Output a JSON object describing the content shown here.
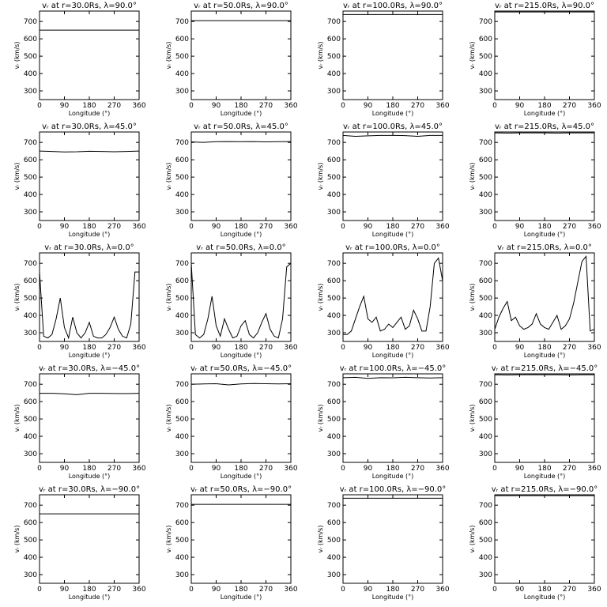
{
  "chart_data": [
    {
      "type": "line",
      "title": "vᵣ at r=30.0Rs, λ=90.0°",
      "xlabel": "Longitude (°)",
      "ylabel": "vᵣ (km/s)",
      "x": [
        0,
        360
      ],
      "values": [
        650,
        650
      ],
      "color": "#000000",
      "xlim": [
        0,
        360
      ],
      "ylim": [
        250,
        760
      ],
      "xticks": [
        0,
        90,
        180,
        270,
        360
      ],
      "yticks": [
        300,
        400,
        500,
        600,
        700
      ]
    },
    {
      "type": "line",
      "title": "vᵣ at r=50.0Rs, λ=90.0°",
      "xlabel": "Longitude (°)",
      "ylabel": "vᵣ (km/s)",
      "x": [
        0,
        360
      ],
      "values": [
        705,
        705
      ],
      "color": "#000000",
      "xlim": [
        0,
        360
      ],
      "ylim": [
        250,
        760
      ],
      "xticks": [
        0,
        90,
        180,
        270,
        360
      ],
      "yticks": [
        300,
        400,
        500,
        600,
        700
      ]
    },
    {
      "type": "line",
      "title": "vᵣ at r=100.0Rs, λ=90.0°",
      "xlabel": "Longitude (°)",
      "ylabel": "vᵣ (km/s)",
      "x": [
        0,
        360
      ],
      "values": [
        740,
        740
      ],
      "color": "#000000",
      "xlim": [
        0,
        360
      ],
      "ylim": [
        250,
        760
      ],
      "xticks": [
        0,
        90,
        180,
        270,
        360
      ],
      "yticks": [
        300,
        400,
        500,
        600,
        700
      ]
    },
    {
      "type": "line",
      "title": "vᵣ at r=215.0Rs, λ=90.0°",
      "xlabel": "Longitude (°)",
      "ylabel": "vᵣ (km/s)",
      "x": [
        0,
        360
      ],
      "values": [
        755,
        755
      ],
      "color": "#000000",
      "xlim": [
        0,
        360
      ],
      "ylim": [
        250,
        760
      ],
      "xticks": [
        0,
        90,
        180,
        270,
        360
      ],
      "yticks": [
        300,
        400,
        500,
        600,
        700
      ]
    },
    {
      "type": "line",
      "title": "vᵣ at r=30.0Rs, λ=45.0°",
      "xlabel": "Longitude (°)",
      "ylabel": "vᵣ (km/s)",
      "x": [
        0,
        45,
        90,
        135,
        180,
        225,
        270,
        315,
        360
      ],
      "values": [
        650,
        648,
        645,
        646,
        649,
        648,
        646,
        648,
        650
      ],
      "color": "#000000",
      "xlim": [
        0,
        360
      ],
      "ylim": [
        250,
        760
      ],
      "xticks": [
        0,
        90,
        180,
        270,
        360
      ],
      "yticks": [
        300,
        400,
        500,
        600,
        700
      ]
    },
    {
      "type": "line",
      "title": "vᵣ at r=50.0Rs, λ=45.0°",
      "xlabel": "Longitude (°)",
      "ylabel": "vᵣ (km/s)",
      "x": [
        0,
        45,
        90,
        135,
        180,
        225,
        270,
        315,
        360
      ],
      "values": [
        703,
        700,
        704,
        705,
        704,
        705,
        703,
        704,
        705
      ],
      "color": "#000000",
      "xlim": [
        0,
        360
      ],
      "ylim": [
        250,
        760
      ],
      "xticks": [
        0,
        90,
        180,
        270,
        360
      ],
      "yticks": [
        300,
        400,
        500,
        600,
        700
      ]
    },
    {
      "type": "line",
      "title": "vᵣ at r=100.0Rs, λ=45.0°",
      "xlabel": "Longitude (°)",
      "ylabel": "vᵣ (km/s)",
      "x": [
        0,
        45,
        90,
        135,
        180,
        225,
        270,
        315,
        360
      ],
      "values": [
        740,
        735,
        738,
        740,
        740,
        739,
        735,
        740,
        740
      ],
      "color": "#000000",
      "xlim": [
        0,
        360
      ],
      "ylim": [
        250,
        760
      ],
      "xticks": [
        0,
        90,
        180,
        270,
        360
      ],
      "yticks": [
        300,
        400,
        500,
        600,
        700
      ]
    },
    {
      "type": "line",
      "title": "vᵣ at r=215.0Rs, λ=45.0°",
      "xlabel": "Longitude (°)",
      "ylabel": "vᵣ (km/s)",
      "x": [
        0,
        45,
        90,
        135,
        180,
        225,
        270,
        315,
        360
      ],
      "values": [
        755,
        754,
        755,
        755,
        755,
        754,
        755,
        755,
        755
      ],
      "color": "#000000",
      "xlim": [
        0,
        360
      ],
      "ylim": [
        250,
        760
      ],
      "xticks": [
        0,
        90,
        180,
        270,
        360
      ],
      "yticks": [
        300,
        400,
        500,
        600,
        700
      ]
    },
    {
      "type": "line",
      "title": "vᵣ at r=30.0Rs, λ=0.0°",
      "xlabel": "Longitude (°)",
      "ylabel": "vᵣ (km/s)",
      "x": [
        0,
        15,
        30,
        45,
        60,
        75,
        90,
        105,
        120,
        135,
        150,
        165,
        180,
        195,
        210,
        225,
        240,
        255,
        270,
        285,
        300,
        315,
        330,
        345,
        360
      ],
      "values": [
        650,
        280,
        270,
        290,
        380,
        500,
        330,
        270,
        390,
        300,
        270,
        300,
        360,
        280,
        270,
        270,
        290,
        330,
        390,
        320,
        280,
        270,
        350,
        650,
        650
      ],
      "color": "#000000",
      "xlim": [
        0,
        360
      ],
      "ylim": [
        250,
        760
      ],
      "xticks": [
        0,
        90,
        180,
        270,
        360
      ],
      "yticks": [
        300,
        400,
        500,
        600,
        700
      ]
    },
    {
      "type": "line",
      "title": "vᵣ at r=50.0Rs, λ=0.0°",
      "xlabel": "Longitude (°)",
      "ylabel": "vᵣ (km/s)",
      "x": [
        0,
        15,
        30,
        45,
        60,
        75,
        90,
        105,
        120,
        135,
        150,
        165,
        180,
        195,
        210,
        225,
        240,
        255,
        270,
        285,
        300,
        315,
        330,
        345,
        360
      ],
      "values": [
        700,
        290,
        270,
        290,
        380,
        510,
        340,
        280,
        380,
        320,
        270,
        280,
        340,
        370,
        290,
        270,
        300,
        360,
        410,
        320,
        280,
        270,
        380,
        680,
        700
      ],
      "color": "#000000",
      "xlim": [
        0,
        360
      ],
      "ylim": [
        250,
        760
      ],
      "xticks": [
        0,
        90,
        180,
        270,
        360
      ],
      "yticks": [
        300,
        400,
        500,
        600,
        700
      ]
    },
    {
      "type": "line",
      "title": "vᵣ at r=100.0Rs, λ=0.0°",
      "xlabel": "Longitude (°)",
      "ylabel": "vᵣ (km/s)",
      "x": [
        0,
        15,
        30,
        45,
        60,
        75,
        90,
        105,
        120,
        135,
        150,
        165,
        180,
        195,
        210,
        225,
        240,
        255,
        270,
        285,
        300,
        315,
        330,
        345,
        360
      ],
      "values": [
        290,
        290,
        310,
        380,
        450,
        510,
        380,
        360,
        390,
        310,
        320,
        350,
        330,
        360,
        390,
        320,
        340,
        430,
        380,
        310,
        310,
        450,
        700,
        730,
        600
      ],
      "color": "#000000",
      "xlim": [
        0,
        360
      ],
      "ylim": [
        250,
        760
      ],
      "xticks": [
        0,
        90,
        180,
        270,
        360
      ],
      "yticks": [
        300,
        400,
        500,
        600,
        700
      ]
    },
    {
      "type": "line",
      "title": "vᵣ at r=215.0Rs, λ=0.0°",
      "xlabel": "Longitude (°)",
      "ylabel": "vᵣ (km/s)",
      "x": [
        0,
        15,
        30,
        45,
        60,
        75,
        90,
        105,
        120,
        135,
        150,
        165,
        180,
        195,
        210,
        225,
        240,
        255,
        270,
        285,
        300,
        315,
        330,
        345,
        360
      ],
      "values": [
        320,
        390,
        440,
        480,
        370,
        390,
        340,
        320,
        330,
        350,
        410,
        350,
        330,
        320,
        360,
        400,
        320,
        340,
        380,
        470,
        590,
        710,
        740,
        310,
        320
      ],
      "color": "#000000",
      "xlim": [
        0,
        360
      ],
      "ylim": [
        250,
        760
      ],
      "xticks": [
        0,
        90,
        180,
        270,
        360
      ],
      "yticks": [
        300,
        400,
        500,
        600,
        700
      ]
    },
    {
      "type": "line",
      "title": "vᵣ at r=30.0Rs, λ=−45.0°",
      "xlabel": "Longitude (°)",
      "ylabel": "vᵣ (km/s)",
      "x": [
        0,
        45,
        90,
        135,
        180,
        225,
        270,
        315,
        360
      ],
      "values": [
        648,
        648,
        645,
        640,
        648,
        648,
        647,
        646,
        648
      ],
      "color": "#000000",
      "xlim": [
        0,
        360
      ],
      "ylim": [
        250,
        760
      ],
      "xticks": [
        0,
        90,
        180,
        270,
        360
      ],
      "yticks": [
        300,
        400,
        500,
        600,
        700
      ]
    },
    {
      "type": "line",
      "title": "vᵣ at r=50.0Rs, λ=−45.0°",
      "xlabel": "Longitude (°)",
      "ylabel": "vᵣ (km/s)",
      "x": [
        0,
        45,
        90,
        135,
        180,
        225,
        270,
        315,
        360
      ],
      "values": [
        700,
        702,
        703,
        696,
        702,
        704,
        703,
        702,
        703
      ],
      "color": "#000000",
      "xlim": [
        0,
        360
      ],
      "ylim": [
        250,
        760
      ],
      "xticks": [
        0,
        90,
        180,
        270,
        360
      ],
      "yticks": [
        300,
        400,
        500,
        600,
        700
      ]
    },
    {
      "type": "line",
      "title": "vᵣ at r=100.0Rs, λ=−45.0°",
      "xlabel": "Longitude (°)",
      "ylabel": "vᵣ (km/s)",
      "x": [
        0,
        45,
        90,
        135,
        180,
        225,
        270,
        315,
        360
      ],
      "values": [
        738,
        740,
        734,
        738,
        737,
        740,
        738,
        736,
        738
      ],
      "color": "#000000",
      "xlim": [
        0,
        360
      ],
      "ylim": [
        250,
        760
      ],
      "xticks": [
        0,
        90,
        180,
        270,
        360
      ],
      "yticks": [
        300,
        400,
        500,
        600,
        700
      ]
    },
    {
      "type": "line",
      "title": "vᵣ at r=215.0Rs, λ=−45.0°",
      "xlabel": "Longitude (°)",
      "ylabel": "vᵣ (km/s)",
      "x": [
        0,
        45,
        90,
        135,
        180,
        225,
        270,
        315,
        360
      ],
      "values": [
        755,
        754,
        755,
        755,
        755,
        755,
        754,
        755,
        755
      ],
      "color": "#000000",
      "xlim": [
        0,
        360
      ],
      "ylim": [
        250,
        760
      ],
      "xticks": [
        0,
        90,
        180,
        270,
        360
      ],
      "yticks": [
        300,
        400,
        500,
        600,
        700
      ]
    },
    {
      "type": "line",
      "title": "vᵣ at r=30.0Rs, λ=−90.0°",
      "xlabel": "Longitude (°)",
      "ylabel": "vᵣ (km/s)",
      "x": [
        0,
        360
      ],
      "values": [
        650,
        650
      ],
      "color": "#000000",
      "xlim": [
        0,
        360
      ],
      "ylim": [
        250,
        760
      ],
      "xticks": [
        0,
        90,
        180,
        270,
        360
      ],
      "yticks": [
        300,
        400,
        500,
        600,
        700
      ]
    },
    {
      "type": "line",
      "title": "vᵣ at r=50.0Rs, λ=−90.0°",
      "xlabel": "Longitude (°)",
      "ylabel": "vᵣ (km/s)",
      "x": [
        0,
        360
      ],
      "values": [
        705,
        705
      ],
      "color": "#000000",
      "xlim": [
        0,
        360
      ],
      "ylim": [
        250,
        760
      ],
      "xticks": [
        0,
        90,
        180,
        270,
        360
      ],
      "yticks": [
        300,
        400,
        500,
        600,
        700
      ]
    },
    {
      "type": "line",
      "title": "vᵣ at r=100.0Rs, λ=−90.0°",
      "xlabel": "Longitude (°)",
      "ylabel": "vᵣ (km/s)",
      "x": [
        0,
        360
      ],
      "values": [
        740,
        740
      ],
      "color": "#000000",
      "xlim": [
        0,
        360
      ],
      "ylim": [
        250,
        760
      ],
      "xticks": [
        0,
        90,
        180,
        270,
        360
      ],
      "yticks": [
        300,
        400,
        500,
        600,
        700
      ]
    },
    {
      "type": "line",
      "title": "vᵣ at r=215.0Rs, λ=−90.0°",
      "xlabel": "Longitude (°)",
      "ylabel": "vᵣ (km/s)",
      "x": [
        0,
        360
      ],
      "values": [
        755,
        755
      ],
      "color": "#000000",
      "xlim": [
        0,
        360
      ],
      "ylim": [
        250,
        760
      ],
      "xticks": [
        0,
        90,
        180,
        270,
        360
      ],
      "yticks": [
        300,
        400,
        500,
        600,
        700
      ]
    }
  ]
}
